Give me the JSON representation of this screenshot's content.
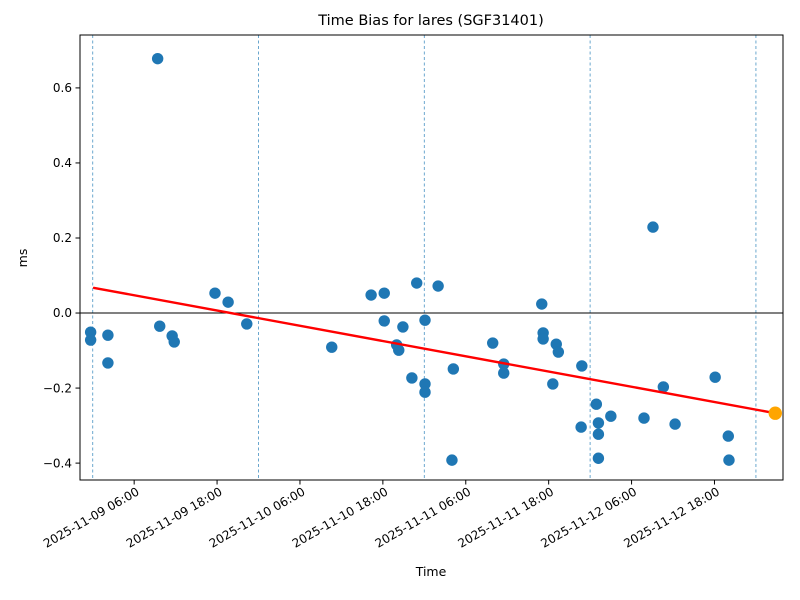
{
  "chart_data": {
    "type": "scatter",
    "title": "Time Bias for lares (SGF31401)",
    "xlabel": "Time",
    "ylabel": "ms",
    "x_unit": "hours since 2025-11-09 00:00",
    "xlim_hours": [
      -1.84,
      99.92
    ],
    "ylim": [
      -0.445,
      0.741
    ],
    "legend": "none",
    "grid": "vertical dashed lines at day boundaries (midnights)",
    "x_ticks": [
      {
        "hours": 6,
        "label": "2025-11-09 06:00"
      },
      {
        "hours": 18,
        "label": "2025-11-09 18:00"
      },
      {
        "hours": 30,
        "label": "2025-11-10 06:00"
      },
      {
        "hours": 42,
        "label": "2025-11-10 18:00"
      },
      {
        "hours": 54,
        "label": "2025-11-11 06:00"
      },
      {
        "hours": 66,
        "label": "2025-11-11 18:00"
      },
      {
        "hours": 78,
        "label": "2025-11-12 06:00"
      },
      {
        "hours": 90,
        "label": "2025-11-12 18:00"
      }
    ],
    "y_ticks": [
      {
        "value": 0.6,
        "label": "0.6"
      },
      {
        "value": 0.4,
        "label": "0.4"
      },
      {
        "value": 0.2,
        "label": "0.2"
      },
      {
        "value": 0.0,
        "label": "0.0"
      },
      {
        "value": -0.2,
        "label": "−0.2"
      },
      {
        "value": -0.4,
        "label": "−0.4"
      }
    ],
    "gridlines_hours": [
      0,
      24,
      48,
      72,
      96
    ],
    "zero_line": 0.0,
    "colors": {
      "scatter": "#1f77b4",
      "latest_point": "#ffa500",
      "trend_line": "#ff0000",
      "gridline": "#5b9ec9",
      "axes": "#000000"
    },
    "series": [
      {
        "name": "time-bias-points",
        "type": "scatter",
        "points": [
          [
            -0.3,
            -0.051
          ],
          [
            -0.3,
            -0.072
          ],
          [
            2.2,
            -0.059
          ],
          [
            2.2,
            -0.133
          ],
          [
            9.4,
            0.678
          ],
          [
            9.7,
            -0.035
          ],
          [
            11.5,
            -0.061
          ],
          [
            11.8,
            -0.077
          ],
          [
            17.7,
            0.053
          ],
          [
            19.6,
            0.029
          ],
          [
            22.3,
            -0.029
          ],
          [
            34.6,
            -0.091
          ],
          [
            40.3,
            0.048
          ],
          [
            42.2,
            0.053
          ],
          [
            42.2,
            -0.021
          ],
          [
            44.0,
            -0.085
          ],
          [
            44.3,
            -0.099
          ],
          [
            44.9,
            -0.037
          ],
          [
            46.2,
            -0.173
          ],
          [
            46.9,
            0.08
          ],
          [
            48.1,
            -0.019
          ],
          [
            48.1,
            -0.189
          ],
          [
            48.1,
            -0.211
          ],
          [
            50.0,
            0.072
          ],
          [
            52.0,
            -0.392
          ],
          [
            52.2,
            -0.149
          ],
          [
            57.9,
            -0.08
          ],
          [
            59.5,
            -0.136
          ],
          [
            59.5,
            -0.16
          ],
          [
            65.0,
            0.024
          ],
          [
            65.2,
            -0.053
          ],
          [
            65.2,
            -0.069
          ],
          [
            66.6,
            -0.189
          ],
          [
            67.1,
            -0.083
          ],
          [
            67.4,
            -0.104
          ],
          [
            70.7,
            -0.304
          ],
          [
            70.8,
            -0.141
          ],
          [
            72.9,
            -0.243
          ],
          [
            73.2,
            -0.293
          ],
          [
            73.2,
            -0.323
          ],
          [
            73.2,
            -0.387
          ],
          [
            75.0,
            -0.275
          ],
          [
            79.8,
            -0.28
          ],
          [
            81.1,
            0.229
          ],
          [
            82.6,
            -0.197
          ],
          [
            84.3,
            -0.296
          ],
          [
            90.1,
            -0.171
          ],
          [
            92.0,
            -0.328
          ],
          [
            92.1,
            -0.392
          ]
        ]
      },
      {
        "name": "latest-point",
        "type": "scatter",
        "points": [
          [
            98.8,
            -0.267
          ]
        ]
      },
      {
        "name": "trend-line",
        "type": "line",
        "points": [
          [
            0.2,
            0.067
          ],
          [
            98.8,
            -0.267
          ]
        ]
      }
    ]
  }
}
